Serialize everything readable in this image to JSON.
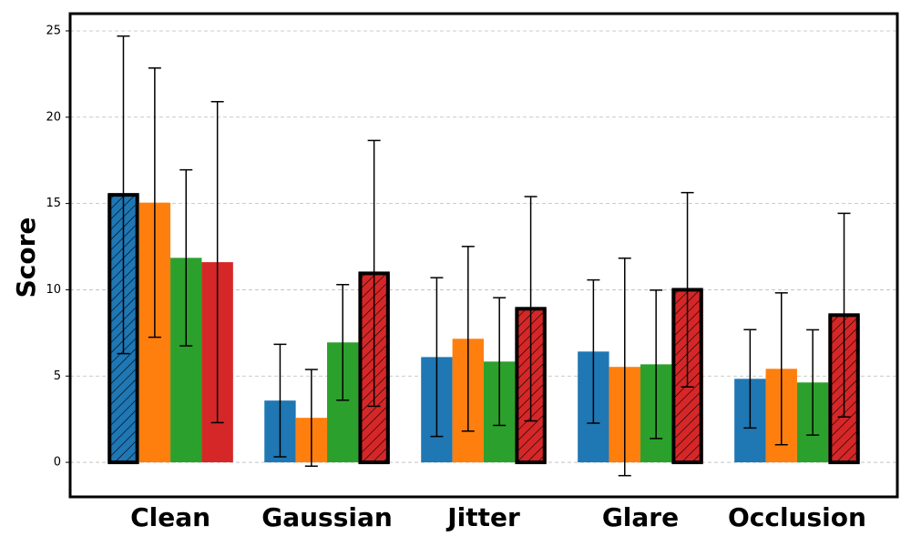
{
  "chart_data": {
    "type": "bar",
    "y_label": "Score",
    "categories": [
      "Clean",
      "Gaussian",
      "Jitter",
      "Glare",
      "Occlusion"
    ],
    "series": [
      {
        "color": "#1f77b4",
        "values": [
          15.5,
          3.58,
          6.1,
          6.42,
          4.84
        ],
        "errors": [
          9.2,
          3.26,
          4.6,
          4.15,
          2.85
        ]
      },
      {
        "color": "#ff7f0e",
        "values": [
          15.05,
          2.58,
          7.16,
          5.53,
          5.42
        ],
        "errors": [
          7.8,
          2.8,
          5.35,
          6.3,
          4.4
        ]
      },
      {
        "color": "#2ca02c",
        "values": [
          11.85,
          6.95,
          5.84,
          5.68,
          4.63
        ],
        "errors": [
          5.1,
          3.35,
          3.7,
          4.3,
          3.05
        ]
      },
      {
        "color": "#d62728",
        "values": [
          11.6,
          10.95,
          8.9,
          10.0,
          8.53
        ],
        "errors": [
          9.3,
          7.7,
          6.5,
          5.63,
          5.9
        ]
      }
    ],
    "ylim": [
      -2,
      26
    ],
    "yticks": [
      0,
      5,
      10,
      15,
      20,
      25
    ],
    "grid": true
  }
}
